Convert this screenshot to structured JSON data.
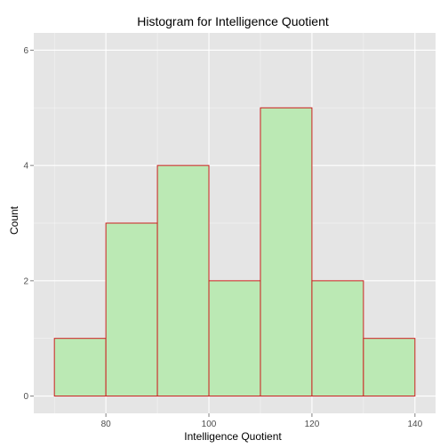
{
  "chart_data": {
    "type": "histogram",
    "title": "Histogram for Intelligence Quotient",
    "xlabel": "Intelligence Quotient",
    "ylabel": "Count",
    "xlim": [
      66,
      144
    ],
    "ylim": [
      -0.3,
      6.3
    ],
    "x_ticks": [
      80,
      100,
      120,
      140
    ],
    "x_minor": [
      70,
      90,
      110,
      130
    ],
    "y_ticks": [
      0,
      2,
      4,
      6
    ],
    "y_minor": [
      1,
      3,
      5
    ],
    "bins": [
      {
        "start": 70,
        "end": 80,
        "count": 1
      },
      {
        "start": 80,
        "end": 90,
        "count": 3
      },
      {
        "start": 90,
        "end": 100,
        "count": 4
      },
      {
        "start": 100,
        "end": 110,
        "count": 2
      },
      {
        "start": 110,
        "end": 120,
        "count": 5
      },
      {
        "start": 120,
        "end": 130,
        "count": 2
      },
      {
        "start": 130,
        "end": 140,
        "count": 1
      }
    ],
    "bar_fill": "#bbe9b4",
    "bar_stroke": "#cc1f1f",
    "panel_background": "#e5e5e5",
    "grid_color": "#ffffff",
    "grid": true,
    "legend": "none"
  }
}
